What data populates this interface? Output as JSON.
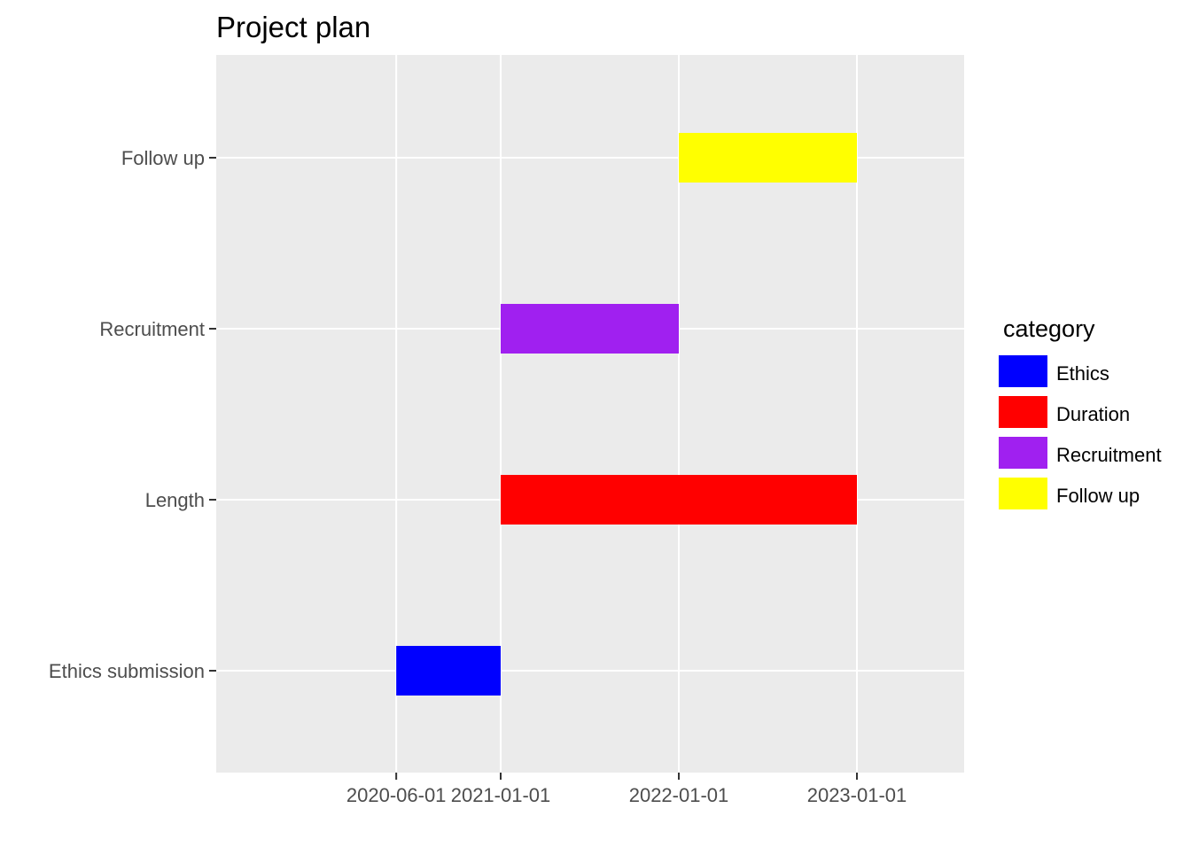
{
  "chart_data": {
    "type": "bar",
    "orientation": "horizontal",
    "title": "Project plan",
    "xlabel": "",
    "ylabel": "",
    "x_scale": "date",
    "xlim": [
      "2020-01-01",
      "2023-07-01"
    ],
    "x_ticks": [
      "2020-06-01",
      "2021-01-01",
      "2022-01-01",
      "2023-01-01"
    ],
    "categories": [
      "Ethics submission",
      "Length",
      "Recruitment",
      "Follow up"
    ],
    "tasks": [
      {
        "label": "Ethics submission",
        "category": "Ethics",
        "start": "2020-06-01",
        "end": "2021-01-01"
      },
      {
        "label": "Length",
        "category": "Duration",
        "start": "2021-01-01",
        "end": "2023-01-01"
      },
      {
        "label": "Recruitment",
        "category": "Recruitment",
        "start": "2021-01-01",
        "end": "2022-01-01"
      },
      {
        "label": "Follow up",
        "category": "Follow up",
        "start": "2022-01-01",
        "end": "2023-01-01"
      }
    ],
    "legend": {
      "title": "category",
      "placement": "right",
      "entries": [
        {
          "label": "Ethics",
          "color": "#0000ff"
        },
        {
          "label": "Duration",
          "color": "#ff0000"
        },
        {
          "label": "Recruitment",
          "color": "#a020f0"
        },
        {
          "label": "Follow up",
          "color": "#ffff00"
        }
      ]
    },
    "grid": true,
    "panel_background": "#ebebeb",
    "grid_color": "#ffffff"
  }
}
